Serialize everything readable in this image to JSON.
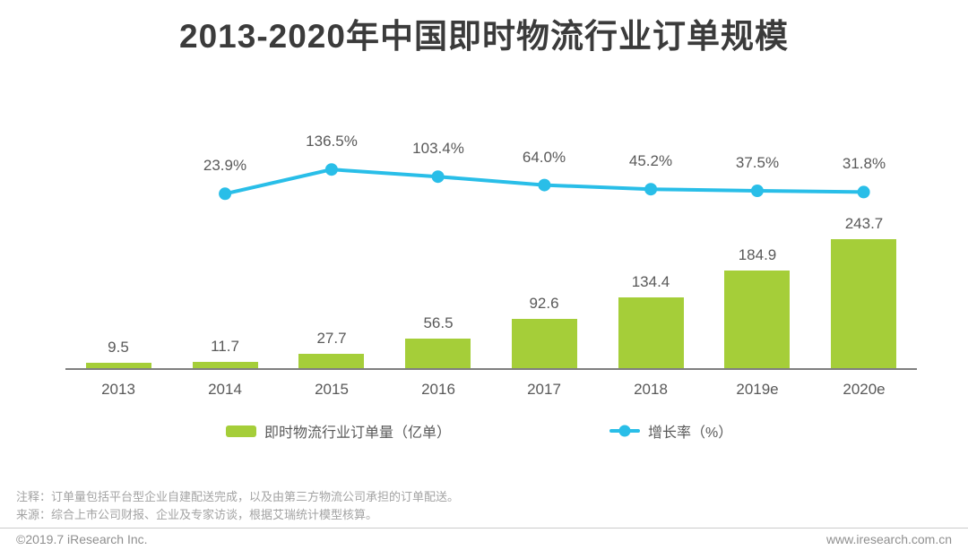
{
  "title": "2013-2020年中国即时物流行业订单规模",
  "chart_data": {
    "type": "bar",
    "categories": [
      "2013",
      "2014",
      "2015",
      "2016",
      "2017",
      "2018",
      "2019e",
      "2020e"
    ],
    "series": [
      {
        "name": "即时物流行业订单量（亿单）",
        "type": "bar",
        "values": [
          9.5,
          11.7,
          27.7,
          56.5,
          92.6,
          134.4,
          184.9,
          243.7
        ],
        "labels": [
          "9.5",
          "11.7",
          "27.7",
          "56.5",
          "92.6",
          "134.4",
          "184.9",
          "243.7"
        ],
        "color": "#a5ce39"
      },
      {
        "name": "增长率（%）",
        "type": "line",
        "values": [
          null,
          23.9,
          136.5,
          103.4,
          64.0,
          45.2,
          37.5,
          31.8
        ],
        "labels": [
          "",
          "23.9%",
          "136.5%",
          "103.4%",
          "64.0%",
          "45.2%",
          "37.5%",
          "31.8%"
        ],
        "color": "#29bee8"
      }
    ],
    "xlabel": "",
    "ylabel": "",
    "grid": false,
    "legend_position": "bottom"
  },
  "legend": [
    {
      "label": "即时物流行业订单量（亿单）",
      "marker": "bar-swatch",
      "color": "#a5ce39"
    },
    {
      "label": "增长率（%）",
      "marker": "line-dot",
      "color": "#29bee8"
    }
  ],
  "notes": {
    "note1": "注释：订单量包括平台型企业自建配送完成，以及由第三方物流公司承担的订单配送。",
    "source": "来源：综合上市公司财报、企业及专家访谈，根据艾瑞统计模型核算。"
  },
  "footer": {
    "copyright": "©2019.7 iResearch Inc.",
    "website": "www.iresearch.com.cn"
  }
}
